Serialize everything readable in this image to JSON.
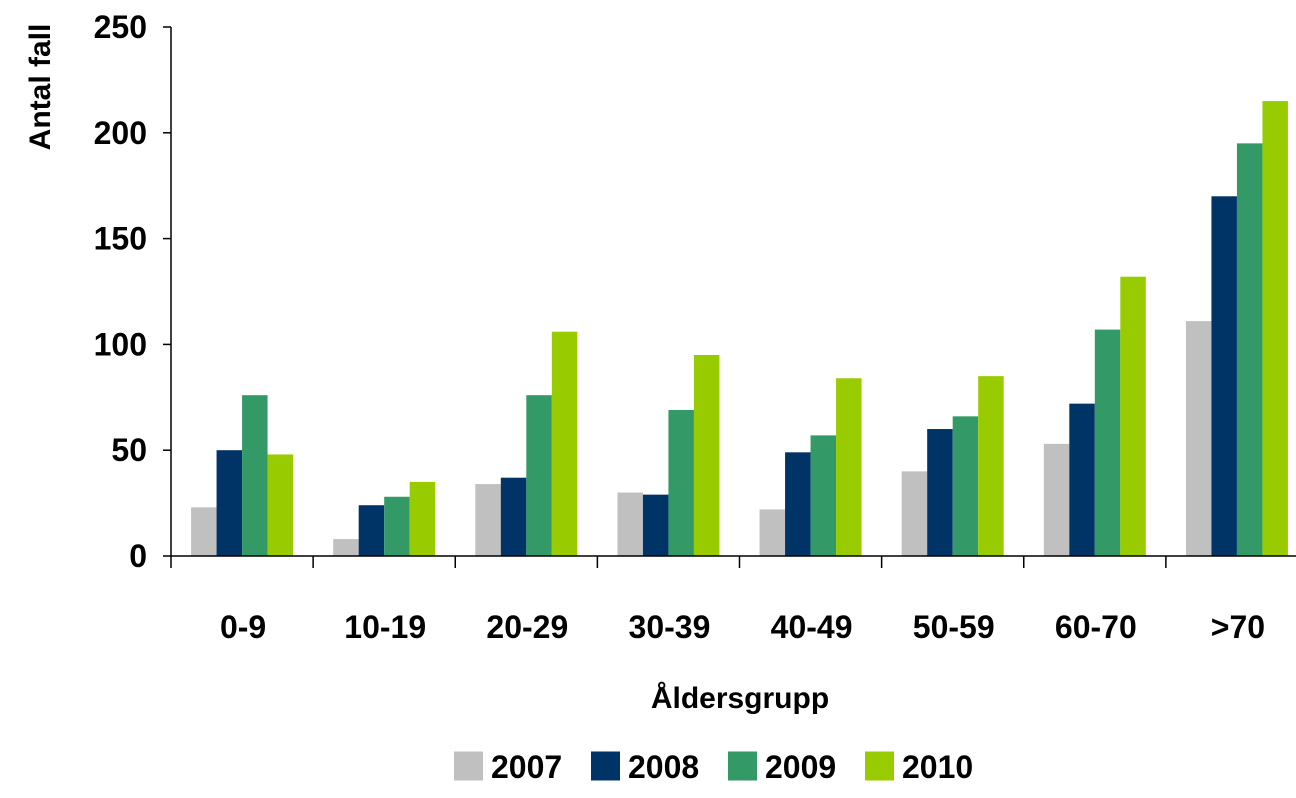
{
  "chart_data": {
    "type": "bar",
    "title": "",
    "xlabel": "Åldersgrupp",
    "ylabel": "Antal fall",
    "ylim": [
      0,
      250
    ],
    "yticks": [
      0,
      50,
      100,
      150,
      200,
      250
    ],
    "grid": false,
    "legend_position": "bottom",
    "categories": [
      "0-9",
      "10-19",
      "20-29",
      "30-39",
      "40-49",
      "50-59",
      "60-70",
      ">70"
    ],
    "series": [
      {
        "name": "2007",
        "color": "#c0c0c0",
        "values": [
          23,
          8,
          34,
          30,
          22,
          40,
          53,
          111
        ]
      },
      {
        "name": "2008",
        "color": "#003366",
        "values": [
          50,
          24,
          37,
          29,
          49,
          60,
          72,
          170
        ]
      },
      {
        "name": "2009",
        "color": "#339966",
        "values": [
          76,
          28,
          76,
          69,
          57,
          66,
          107,
          195
        ]
      },
      {
        "name": "2010",
        "color": "#99cc00",
        "values": [
          48,
          35,
          106,
          95,
          84,
          85,
          132,
          215
        ]
      }
    ]
  }
}
